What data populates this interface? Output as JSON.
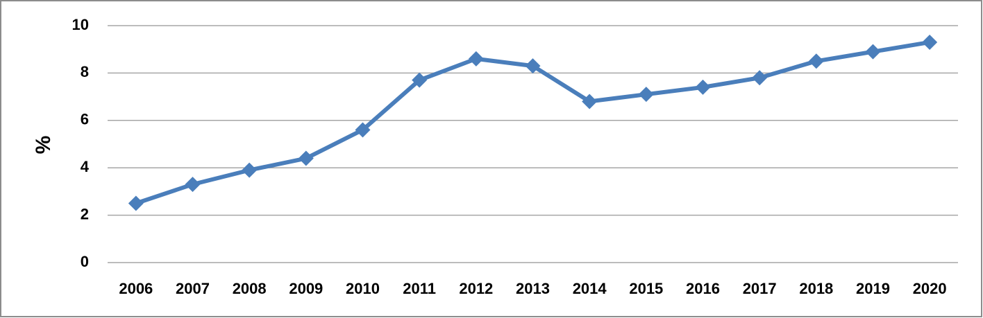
{
  "chart_data": {
    "type": "line",
    "y_label": "%",
    "categories": [
      "2006",
      "2007",
      "2008",
      "2009",
      "2010",
      "2011",
      "2012",
      "2013",
      "2014",
      "2015",
      "2016",
      "2017",
      "2018",
      "2019",
      "2020"
    ],
    "series": [
      {
        "color": "#4a7ebb",
        "values": [
          2.5,
          3.3,
          3.9,
          4.4,
          5.6,
          7.7,
          8.6,
          8.3,
          6.8,
          7.1,
          7.4,
          7.8,
          8.5,
          8.9,
          9.3
        ]
      }
    ],
    "ylim": [
      0,
      10
    ],
    "yticks": [
      0,
      2,
      4,
      6,
      8,
      10
    ],
    "grid": true,
    "marker": "diamond"
  }
}
